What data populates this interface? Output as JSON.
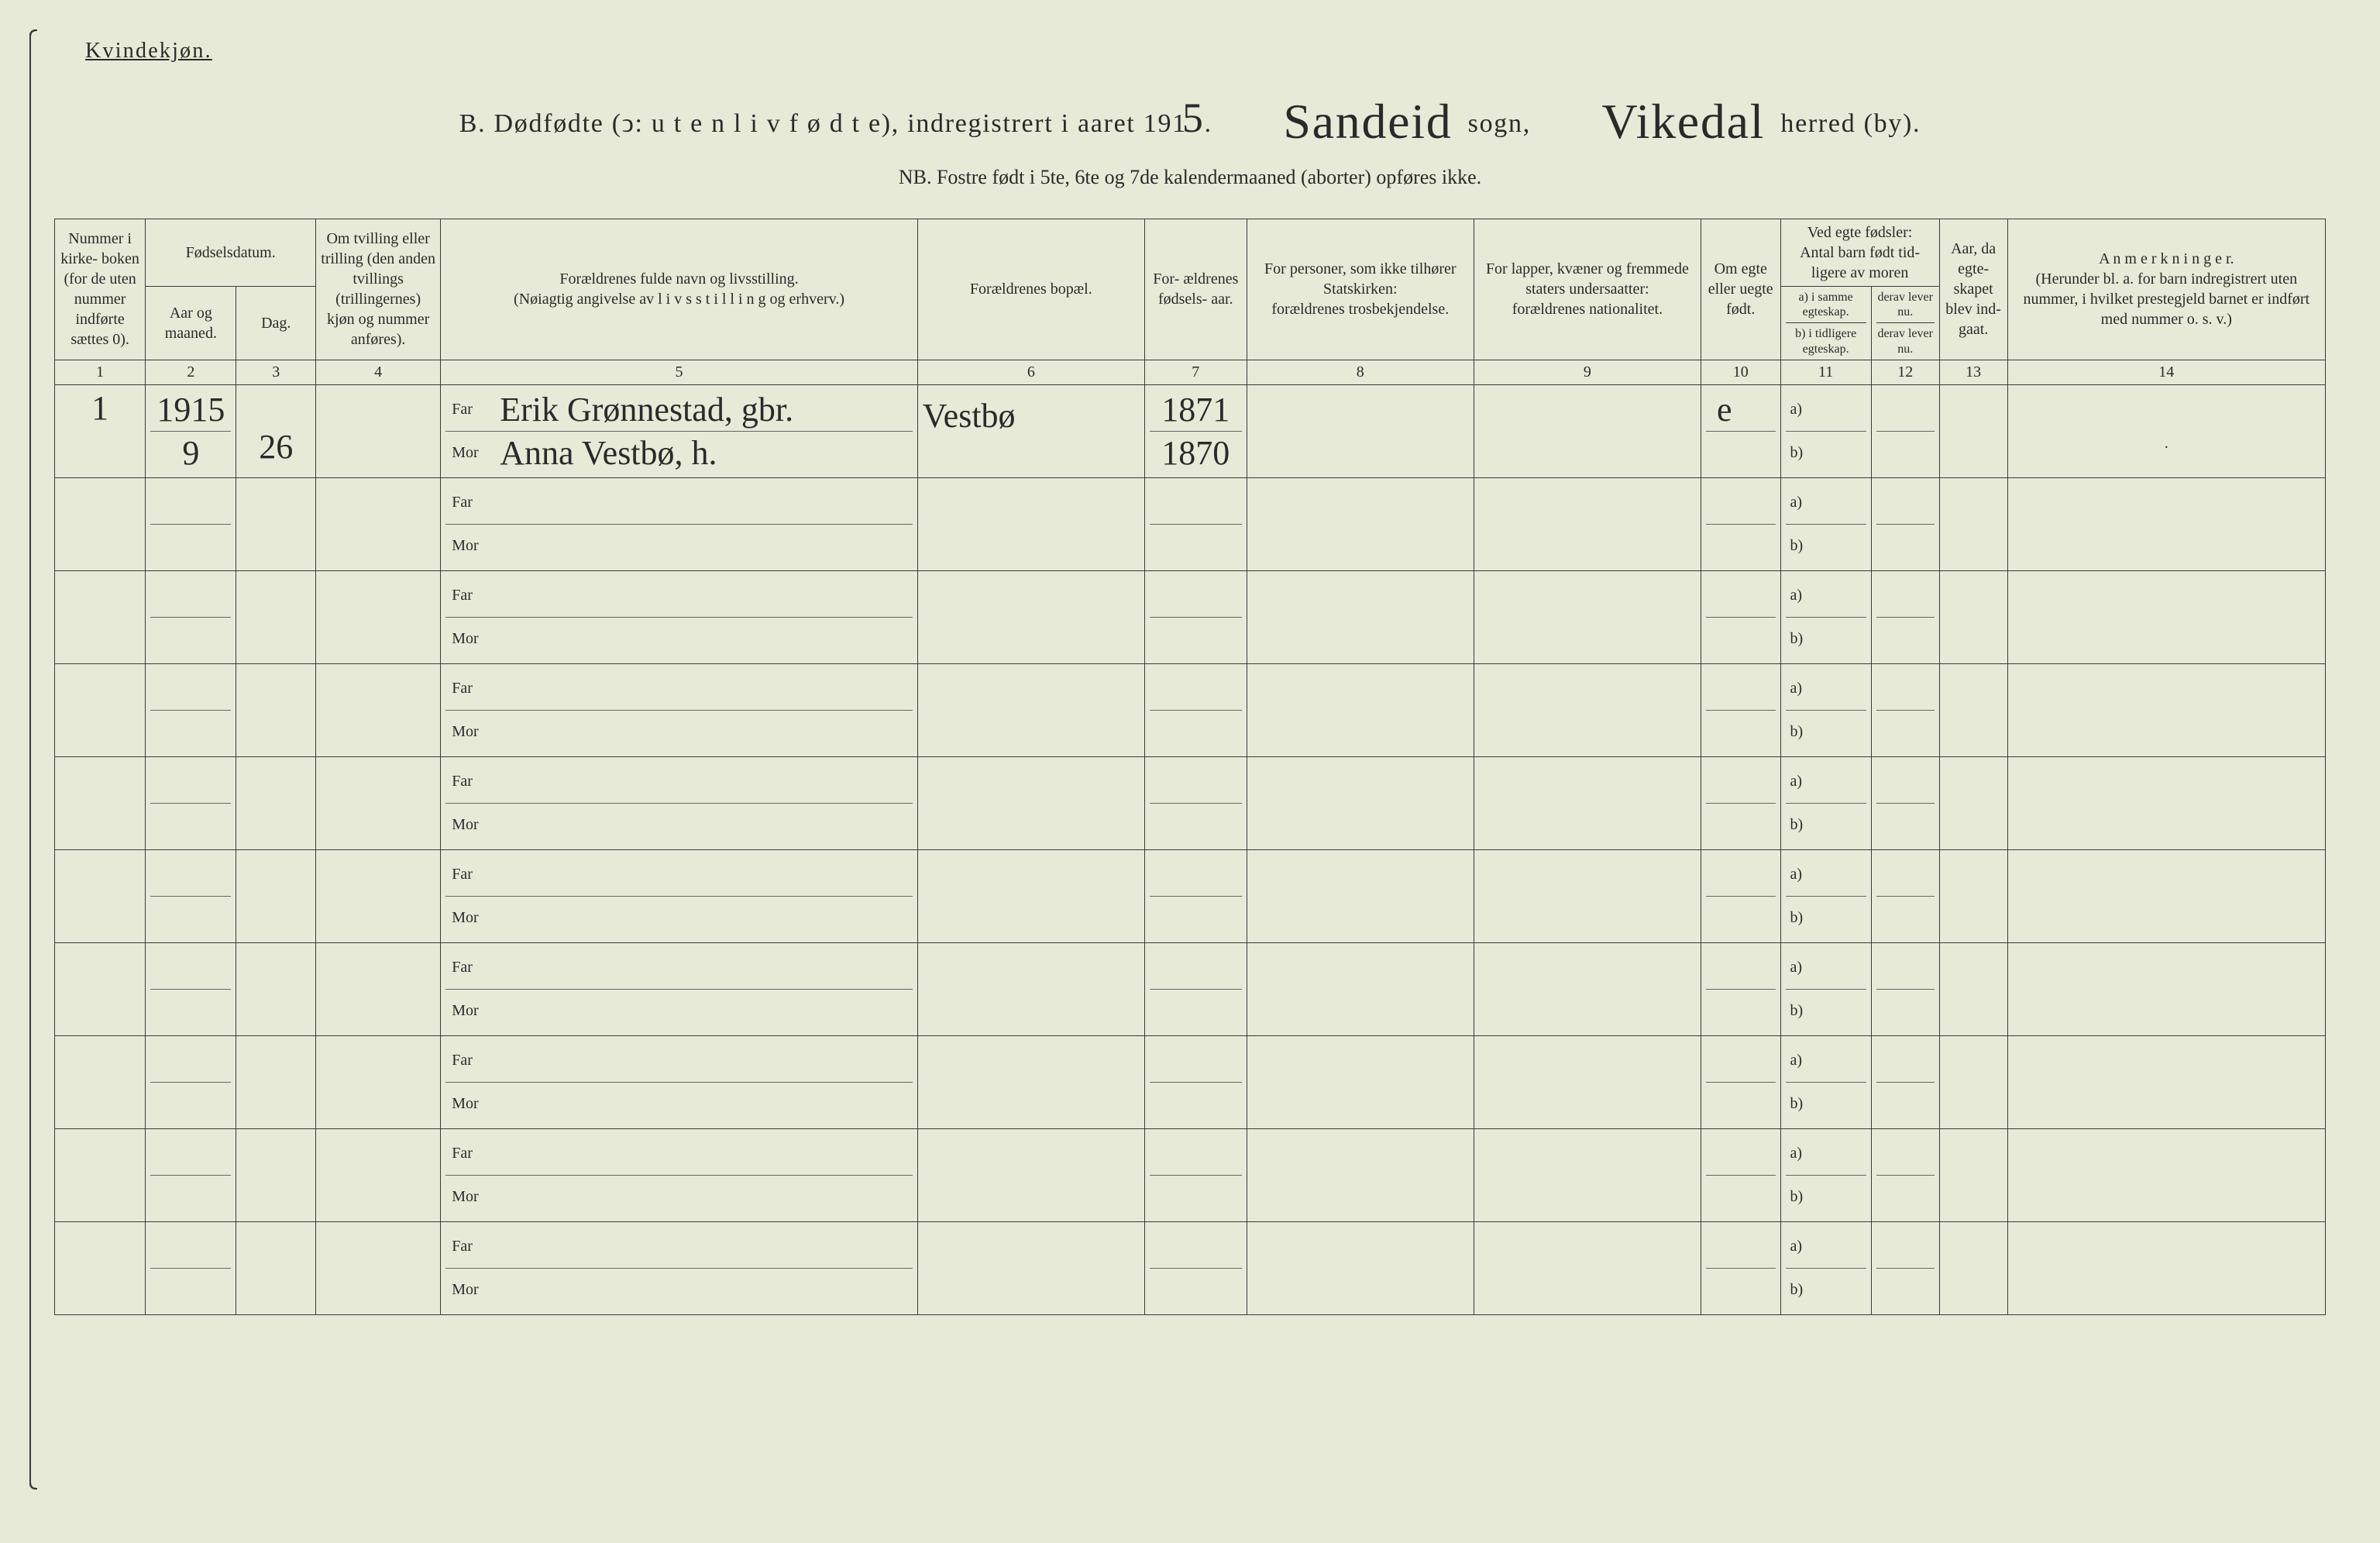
{
  "header": {
    "gender": "Kvindekjøn.",
    "title_prefix": "B.   Dødfødte (ↄ:  u t e n  l i v  f ø d t e),  indregistrert i aaret 191",
    "year_suffix": "5",
    "sogn_label": "sogn,",
    "sogn_value": "Sandeid",
    "herred_label": "herred (by).",
    "herred_value": "Vikedal",
    "nb": "NB.  Fostre født i 5te, 6te og 7de kalendermaaned (aborter) opføres ikke."
  },
  "columns": {
    "c1": "Nummer i kirke- boken (for de uten nummer indførte sættes 0).",
    "c2_top": "Fødselsdatum.",
    "c2_a": "Aar og maaned.",
    "c2_b": "Dag.",
    "c4": "Om tvilling eller trilling (den anden tvillings (trillingernes) kjøn og nummer anføres).",
    "c5": "Forældrenes fulde navn og livsstilling.\n(Nøiagtig angivelse av  l i v s s t i l l i n g  og erhverv.)",
    "c6": "Forældrenes bopæl.",
    "c7": "For- ældrenes fødsels- aar.",
    "c8": "For personer, som ikke tilhører Statskirken:\nforældrenes trosbekjendelse.",
    "c9": "For lapper, kvæner og fremmede staters undersaatter:\nforældrenes nationalitet.",
    "c10": "Om egte eller uegte født.",
    "c11_top": "Ved egte fødsler:\nAntal barn født tid- ligere av moren",
    "c11_a": "a) i samme egteskap.",
    "c11_b": "b) i tidligere egteskap.",
    "c12_a": "derav lever nu.",
    "c12_b": "derav lever nu.",
    "c13": "Aar, da egte- skapet blev ind- gaat.",
    "c14": "A n m e r k n i n g e r.\n(Herunder bl. a. for barn indregistrert uten nummer, i hvilket prestegjeld barnet er indført med nummer o. s. v.)"
  },
  "colnums": [
    "1",
    "2",
    "3",
    "4",
    "5",
    "6",
    "7",
    "8",
    "9",
    "10",
    "11",
    "12",
    "13",
    "14"
  ],
  "far_label": "Far",
  "mor_label": "Mor",
  "ab_a": "a)",
  "ab_b": "b)",
  "rows": [
    {
      "num": "1",
      "year_month": "1915\n9",
      "day": "26",
      "tvilling": "",
      "far": "Erik Grønnestad, gbr.",
      "mor": "Anna Vestbø, h.",
      "bopael": "Vestbø",
      "far_birth": "1871",
      "mor_birth": "1870",
      "c8": "",
      "c9": "",
      "egte": "e",
      "a_val": "",
      "b_val": "",
      "c12": "",
      "c13": "",
      "c14": "."
    },
    {},
    {},
    {},
    {},
    {},
    {},
    {},
    {},
    {}
  ]
}
